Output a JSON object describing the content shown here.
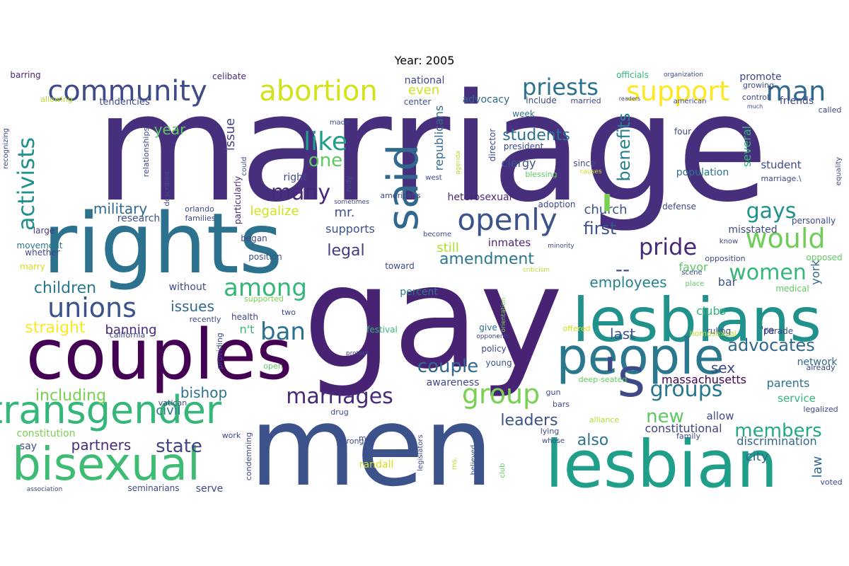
{
  "title": "Year: 2005",
  "words": [
    {
      "text": "marriage",
      "color": "#472f7d"
    },
    {
      "text": "gay",
      "color": "#482374"
    },
    {
      "text": "rights",
      "color": "#2c728e"
    },
    {
      "text": "men",
      "color": "#3b528b"
    },
    {
      "text": "couples",
      "color": "#440154"
    },
    {
      "text": "lesbians",
      "color": "#21918c"
    },
    {
      "text": "lesbian",
      "color": "#1f9e89"
    },
    {
      "text": "people",
      "color": "#2a788e"
    },
    {
      "text": "bisexual",
      "color": "#3fbc73"
    },
    {
      "text": "transgender",
      "color": "#35b779"
    },
    {
      "text": "said",
      "color": "#31688e"
    },
    {
      "text": "'s",
      "color": "#3e4989"
    },
    {
      "text": "abortion",
      "color": "#d2e21b"
    },
    {
      "text": "community",
      "color": "#3e4a89"
    },
    {
      "text": "openly",
      "color": "#3b528b"
    },
    {
      "text": "unions",
      "color": "#3b528b"
    },
    {
      "text": "support",
      "color": "#fde725"
    },
    {
      "text": "man",
      "color": "#31688e"
    },
    {
      "text": "priests",
      "color": "#2c728e"
    },
    {
      "text": "would",
      "color": "#6ece58"
    },
    {
      "text": "group",
      "color": "#7ad151"
    },
    {
      "text": "marriages",
      "color": "#482878"
    },
    {
      "text": "groups",
      "color": "#2a788e"
    },
    {
      "text": "like",
      "color": "#1f9e89"
    },
    {
      "text": "among",
      "color": "#35b779"
    },
    {
      "text": "activists",
      "color": "#21918c"
    },
    {
      "text": "ban",
      "color": "#2c728e"
    },
    {
      "text": "pride",
      "color": "#482878"
    },
    {
      "text": "women",
      "color": "#35b779"
    },
    {
      "text": "gays",
      "color": "#21918c"
    },
    {
      "text": "many",
      "color": "#482878"
    },
    {
      "text": "one",
      "color": "#5ec962"
    },
    {
      "text": "couple",
      "color": "#31688e"
    },
    {
      "text": "state",
      "color": "#414487"
    },
    {
      "text": "members",
      "color": "#22a884"
    },
    {
      "text": "advocates",
      "color": "#31688e"
    },
    {
      "text": "new",
      "color": "#5ec962"
    },
    {
      "text": "first",
      "color": "#3b528b"
    },
    {
      "text": "benefits",
      "color": "#26828e"
    },
    {
      "text": "children",
      "color": "#2a788e"
    },
    {
      "text": "straight",
      "color": "#fde725"
    },
    {
      "text": "issues",
      "color": "#31688e"
    },
    {
      "text": "including",
      "color": "#7ad151"
    },
    {
      "text": "legal",
      "color": "#443983"
    },
    {
      "text": "amendment",
      "color": "#2a788e"
    },
    {
      "text": "students",
      "color": "#2c728e"
    },
    {
      "text": "leaders",
      "color": "#3b528b"
    },
    {
      "text": "also",
      "color": "#2c728e"
    },
    {
      "text": "partners",
      "color": "#472d7b"
    },
    {
      "text": "bishop",
      "color": "#2c728e"
    },
    {
      "text": "employees",
      "color": "#26828e"
    },
    {
      "text": "year",
      "color": "#5ec962"
    },
    {
      "text": "military",
      "color": "#31688e"
    },
    {
      "text": "church",
      "color": "#3b528b"
    },
    {
      "text": "--",
      "color": "#3e4989"
    },
    {
      "text": "sex",
      "color": "#3e4989"
    },
    {
      "text": "last",
      "color": "#3b528b"
    },
    {
      "text": "constitutional",
      "color": "#414487"
    },
    {
      "text": "law",
      "color": "#31688e"
    },
    {
      "text": "city",
      "color": "#31688e"
    },
    {
      "text": "civil",
      "color": "#2a788e"
    },
    {
      "text": "discrimination",
      "color": "#31688e"
    },
    {
      "text": "massachusetts",
      "color": "#440154"
    },
    {
      "text": "legalize",
      "color": "#d2e21b"
    },
    {
      "text": "banning",
      "color": "#482878"
    },
    {
      "text": "issue",
      "color": "#414487"
    },
    {
      "text": "even",
      "color": "#d2e21b"
    },
    {
      "text": "still",
      "color": "#b5de2b"
    },
    {
      "text": "mr.",
      "color": "#3b528b"
    },
    {
      "text": "supports",
      "color": "#3b528b"
    },
    {
      "text": "clergy",
      "color": "#3b528b"
    },
    {
      "text": "york",
      "color": "#31688e"
    },
    {
      "text": "parents",
      "color": "#2c728e"
    },
    {
      "text": "bar",
      "color": "#3b528b"
    },
    {
      "text": "several",
      "color": "#35b779"
    },
    {
      "text": "favor",
      "color": "#5ec962"
    },
    {
      "text": "clubs",
      "color": "#35b779"
    },
    {
      "text": "service",
      "color": "#35b779"
    },
    {
      "text": "allow",
      "color": "#3e4989"
    },
    {
      "text": "say",
      "color": "#3b528b"
    },
    {
      "text": "right",
      "color": "#3e4989"
    },
    {
      "text": "republicans",
      "color": "#31688e"
    },
    {
      "text": "student",
      "color": "#3e4989"
    },
    {
      "text": "network",
      "color": "#31688e"
    },
    {
      "text": "n't",
      "color": "#35b779"
    },
    {
      "text": "'re",
      "color": "#414487"
    },
    {
      "text": "inmates",
      "color": "#482878"
    },
    {
      "text": "awareness",
      "color": "#3e4989"
    },
    {
      "text": "serve",
      "color": "#3e4989"
    },
    {
      "text": "constitution",
      "color": "#7ad151"
    },
    {
      "text": "randall",
      "color": "#d2e21b"
    },
    {
      "text": "misstated",
      "color": "#3e4989"
    },
    {
      "text": "population",
      "color": "#2c728e"
    },
    {
      "text": "promote",
      "color": "#3e4989"
    },
    {
      "text": "national",
      "color": "#3e4989"
    },
    {
      "text": "advocacy",
      "color": "#31688e"
    },
    {
      "text": "heterosexual",
      "color": "#482878"
    },
    {
      "text": "research",
      "color": "#3b528b"
    },
    {
      "text": "percent",
      "color": "#2a788e"
    },
    {
      "text": "without",
      "color": "#3e4989"
    },
    {
      "text": "friends",
      "color": "#3e4989"
    },
    {
      "text": "tendencies",
      "color": "#3e4989"
    },
    {
      "text": "barring",
      "color": "#482878"
    },
    {
      "text": "celibate",
      "color": "#482878"
    },
    {
      "text": "officials",
      "color": "#35b779"
    },
    {
      "text": "week",
      "color": "#2c728e"
    },
    {
      "text": "include",
      "color": "#3e4989"
    },
    {
      "text": "center",
      "color": "#3b528b"
    },
    {
      "text": "president",
      "color": "#3e4989"
    },
    {
      "text": "particularly",
      "color": "#482878"
    },
    {
      "text": "health",
      "color": "#414487"
    },
    {
      "text": "movement",
      "color": "#2a788e"
    },
    {
      "text": "marry",
      "color": "#d2e21b"
    },
    {
      "text": "large",
      "color": "#443983"
    },
    {
      "text": "whether",
      "color": "#3e4989"
    },
    {
      "text": "position",
      "color": "#3b528b"
    },
    {
      "text": "began",
      "color": "#3e4989"
    },
    {
      "text": "toward",
      "color": "#3e4989"
    },
    {
      "text": "policy",
      "color": "#3e4989"
    },
    {
      "text": "young",
      "color": "#3b528b"
    },
    {
      "text": "give",
      "color": "#2c728e"
    },
    {
      "text": "festival",
      "color": "#35b779"
    },
    {
      "text": "ruling",
      "color": "#3e4989"
    },
    {
      "text": "parade",
      "color": "#3e4989"
    },
    {
      "text": "medical",
      "color": "#5ec962"
    },
    {
      "text": "opposed",
      "color": "#5ec962"
    },
    {
      "text": "personally",
      "color": "#3e4989"
    },
    {
      "text": "defense",
      "color": "#3e4989"
    },
    {
      "text": "adoption",
      "color": "#3e4989"
    },
    {
      "text": "director",
      "color": "#3e4989"
    },
    {
      "text": "four",
      "color": "#3e4989"
    },
    {
      "text": "since",
      "color": "#3e4989"
    },
    {
      "text": "called",
      "color": "#3e4989"
    },
    {
      "text": "control",
      "color": "#3e4989"
    },
    {
      "text": "married",
      "color": "#3e4989"
    },
    {
      "text": "blessing",
      "color": "#5ec962"
    },
    {
      "text": "americans",
      "color": "#3e4989"
    },
    {
      "text": "orlando",
      "color": "#3e4989"
    },
    {
      "text": "families",
      "color": "#3e4989"
    },
    {
      "text": "california",
      "color": "#3e4989"
    },
    {
      "text": "recently",
      "color": "#3e4989"
    },
    {
      "text": "two",
      "color": "#3e4989"
    },
    {
      "text": "supported",
      "color": "#7ad151"
    },
    {
      "text": "providing",
      "color": "#3e4989"
    },
    {
      "text": "open",
      "color": "#5ec962"
    },
    {
      "text": "vatican",
      "color": "#3e4989"
    },
    {
      "text": "work",
      "color": "#3e4989"
    },
    {
      "text": "condemning",
      "color": "#3e4989"
    },
    {
      "text": "gun",
      "color": "#3e4989"
    },
    {
      "text": "bars",
      "color": "#3e4989"
    },
    {
      "text": "deep-seated",
      "color": "#5ec962"
    },
    {
      "text": "already",
      "color": "#3e4989"
    },
    {
      "text": "legalized",
      "color": "#3e4989"
    },
    {
      "text": "alliance",
      "color": "#b5de2b"
    },
    {
      "text": "family",
      "color": "#3e4989"
    },
    {
      "text": "lying",
      "color": "#3e4989"
    },
    {
      "text": "whose",
      "color": "#3e4989"
    },
    {
      "text": "strong",
      "color": "#3e4989"
    },
    {
      "text": "may",
      "color": "#3e4989"
    },
    {
      "text": "drug",
      "color": "#3e4989"
    },
    {
      "text": "legislators",
      "color": "#3e4989"
    },
    {
      "text": "ms.",
      "color": "#b5de2b"
    },
    {
      "text": "believed",
      "color": "#3e4989"
    },
    {
      "text": "club",
      "color": "#5ec962"
    },
    {
      "text": "seminarians",
      "color": "#3e4989"
    },
    {
      "text": "association",
      "color": "#3e4989"
    },
    {
      "text": "voted",
      "color": "#3e4989"
    },
    {
      "text": "opposition",
      "color": "#3e4989"
    },
    {
      "text": "scene",
      "color": "#3e4989"
    },
    {
      "text": "place",
      "color": "#5ec962"
    },
    {
      "text": "homosexual",
      "color": "#b5de2b"
    },
    {
      "text": "offered",
      "color": "#d2e21b"
    },
    {
      "text": "orientation",
      "color": "#7ad151"
    },
    {
      "text": "opponents",
      "color": "#3e4989"
    },
    {
      "text": "protect",
      "color": "#3e4989"
    },
    {
      "text": "criticism",
      "color": "#b5de2b"
    },
    {
      "text": "minority",
      "color": "#3e4989"
    },
    {
      "text": "become",
      "color": "#3e4989"
    },
    {
      "text": "sometimes",
      "color": "#3e4989"
    },
    {
      "text": "rudy",
      "color": "#3e4989"
    },
    {
      "text": "west",
      "color": "#3e4989"
    },
    {
      "text": "agenda",
      "color": "#b5de2b"
    },
    {
      "text": "made",
      "color": "#3e4989"
    },
    {
      "text": "could",
      "color": "#3e4989"
    },
    {
      "text": "relationships",
      "color": "#3e4989"
    },
    {
      "text": "described",
      "color": "#3e4989"
    },
    {
      "text": "recognizing",
      "color": "#3e4989"
    },
    {
      "text": "allowing",
      "color": "#b5de2b"
    },
    {
      "text": "equality",
      "color": "#3e4989"
    },
    {
      "text": "marriage.\\",
      "color": "#3e4989"
    },
    {
      "text": "growing",
      "color": "#3e4989"
    },
    {
      "text": "organization",
      "color": "#3e4989"
    },
    {
      "text": "american",
      "color": "#3e4989"
    },
    {
      "text": "readers",
      "color": "#3e4989"
    },
    {
      "text": "much",
      "color": "#3e4989"
    },
    {
      "text": "causes",
      "color": "#d2e21b"
    },
    {
      "text": "know",
      "color": "#3e4989"
    },
    {
      "text": "'",
      "color": "#7ad151"
    }
  ]
}
